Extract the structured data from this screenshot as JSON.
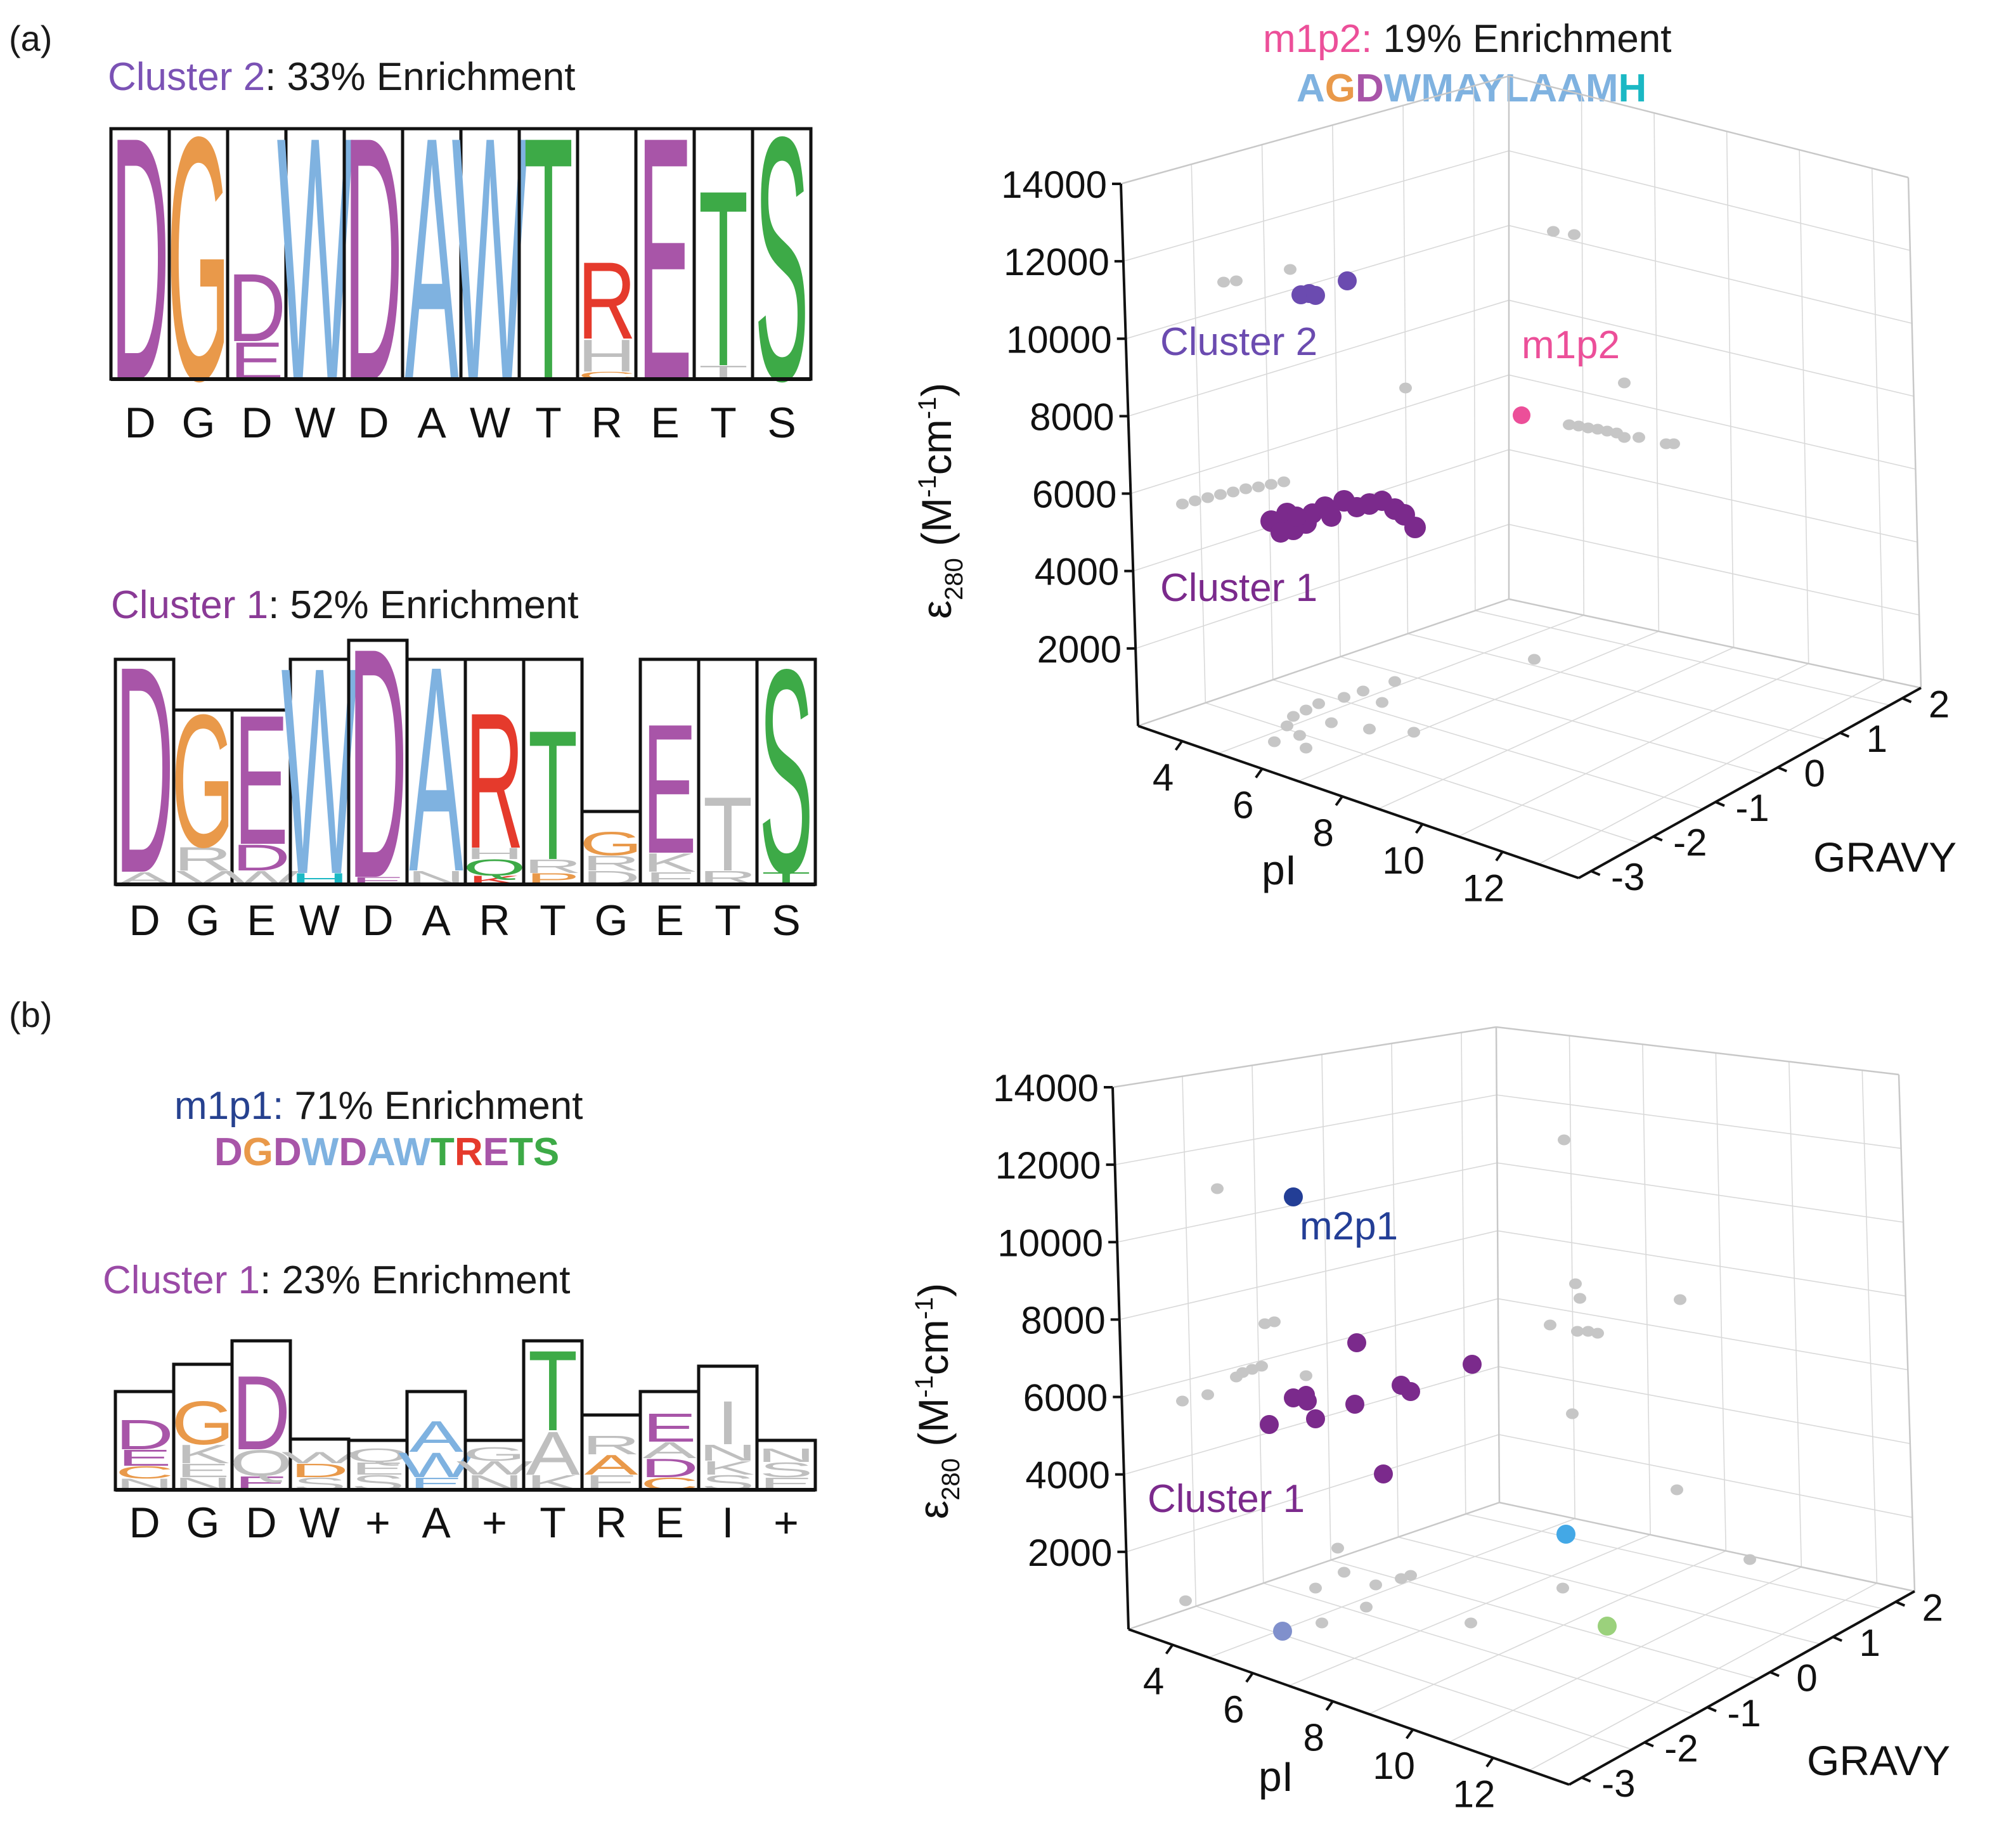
{
  "panel_labels": {
    "a": "(a)",
    "b": "(b)"
  },
  "colors": {
    "purple": "#A855A8",
    "orange": "#E9994A",
    "lightblue": "#7FB2E0",
    "green": "#3DAA47",
    "red": "#E53A2C",
    "cyan": "#1BB8C4",
    "gray": "#BFBFBF",
    "cluster1": "#7B2A8C",
    "cluster2": "#6B4BB0",
    "m1p2": "#EC4F99",
    "m2p1": "#233E96",
    "m1p1title": "#26418F"
  },
  "logo_a2": {
    "title_prefix": "Cluster 2",
    "title_suffix": ": 33% Enrichment",
    "xlabels": [
      "D",
      "G",
      "D",
      "W",
      "D",
      "A",
      "W",
      "T",
      "R",
      "E",
      "T",
      "S"
    ]
  },
  "logo_a1": {
    "title_prefix": "Cluster 1",
    "title_suffix": ": 52% Enrichment",
    "xlabels": [
      "D",
      "G",
      "E",
      "W",
      "D",
      "A",
      "R",
      "T",
      "G",
      "E",
      "T",
      "S"
    ]
  },
  "logo_b": {
    "m1p1_prefix": "m1p1:",
    "m1p1_suffix": " 71% Enrichment",
    "m1p1_sequence": [
      "D",
      "G",
      "D",
      "W",
      "D",
      "A",
      "W",
      "T",
      "R",
      "E",
      "T",
      "S"
    ],
    "title_prefix": "Cluster 1",
    "title_suffix": ": 23% Enrichment",
    "xlabels": [
      "D",
      "G",
      "D",
      "W",
      "+",
      "A",
      "+",
      "T",
      "R",
      "E",
      "I",
      "+"
    ]
  },
  "m1p2_header": {
    "prefix": "m1p2:",
    "suffix": " 19% Enrichment",
    "sequence": [
      "A",
      "G",
      "D",
      "W",
      "M",
      "A",
      "Y",
      "L",
      "A",
      "A",
      "M",
      "H"
    ]
  },
  "chart_data": [
    {
      "type": "scatter",
      "panel": "a",
      "xlabel": "pI",
      "ylabel": "GRAVY",
      "zlabel": "ε280 (M-1cm-1)",
      "xticks": [
        4,
        6,
        8,
        10,
        12
      ],
      "yticks": [
        -3,
        -2,
        -1,
        0,
        1,
        2
      ],
      "zticks": [
        2000,
        4000,
        6000,
        8000,
        10000,
        12000,
        14000
      ],
      "annotations": [
        "Cluster 2",
        "m1p2",
        "Cluster 1"
      ],
      "series": [
        {
          "name": "Cluster 2",
          "points": [
            [
              4.4,
              0.8,
              11300
            ],
            [
              4.5,
              0.8,
              11200
            ],
            [
              4.6,
              0.8,
              11250
            ],
            [
              5.3,
              0.8,
              11600
            ]
          ]
        },
        {
          "name": "m1p2",
          "points": [
            [
              11.0,
              0.8,
              8000
            ]
          ]
        },
        {
          "name": "Cluster 1",
          "points": [
            [
              4.5,
              0.8,
              5600
            ],
            [
              4.7,
              0.8,
              5400
            ],
            [
              5.0,
              0.8,
              5800
            ],
            [
              5.3,
              0.8,
              5900
            ],
            [
              5.6,
              0.8,
              5800
            ],
            [
              6.0,
              0.8,
              5700
            ],
            [
              6.4,
              0.8,
              5600
            ],
            [
              6.8,
              0.8,
              5300
            ]
          ]
        }
      ]
    },
    {
      "type": "scatter",
      "panel": "b",
      "xlabel": "pI",
      "ylabel": "GRAVY",
      "zlabel": "ε280 (M-1cm-1)",
      "xticks": [
        4,
        6,
        8,
        10,
        12
      ],
      "yticks": [
        -3,
        -2,
        -1,
        0,
        1,
        2
      ],
      "zticks": [
        2000,
        4000,
        6000,
        8000,
        10000,
        12000,
        14000
      ],
      "annotations": [
        "m2p1",
        "Cluster 1"
      ],
      "series": [
        {
          "name": "m2p1",
          "points": [
            [
              4.3,
              0.8,
              11700
            ]
          ]
        },
        {
          "name": "Cluster 1",
          "points": [
            [
              4.1,
              0.8,
              5500
            ],
            [
              4.6,
              0.8,
              6000
            ],
            [
              4.9,
              0.8,
              5800
            ],
            [
              5.4,
              0.8,
              6000
            ],
            [
              5.8,
              0.8,
              7500
            ],
            [
              6.2,
              0.8,
              6300
            ],
            [
              6.5,
              0.8,
              4000
            ],
            [
              7.2,
              0.8,
              6800
            ]
          ]
        }
      ]
    }
  ]
}
